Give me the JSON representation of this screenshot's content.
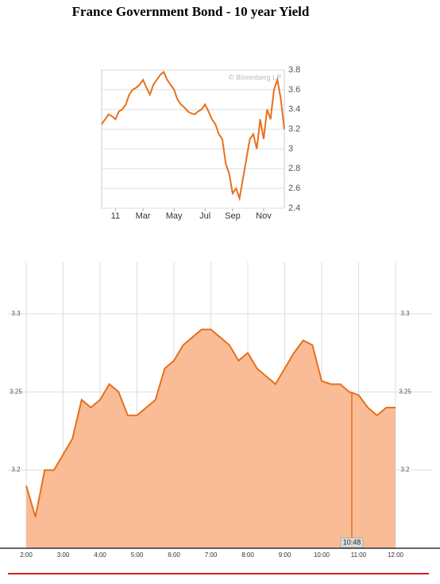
{
  "title": "France Government Bond - 10 year Yield",
  "chart_data": [
    {
      "type": "line",
      "watermark": "© Bloomberg LP",
      "color": "#e8701a",
      "categories": [
        null,
        null,
        null,
        null,
        "11",
        null,
        null,
        null,
        null,
        null,
        null,
        null,
        "Mar",
        null,
        null,
        null,
        null,
        null,
        null,
        null,
        null,
        "May",
        null,
        null,
        null,
        null,
        null,
        null,
        null,
        null,
        "Jul",
        null,
        null,
        null,
        null,
        null,
        null,
        null,
        "Sep",
        null,
        null,
        null,
        null,
        null,
        null,
        null,
        null,
        "Nov",
        null,
        null,
        null,
        null,
        null,
        null
      ],
      "values": [
        3.25,
        3.3,
        3.35,
        3.33,
        3.3,
        3.38,
        3.4,
        3.45,
        3.55,
        3.6,
        3.62,
        3.65,
        3.7,
        3.62,
        3.55,
        3.65,
        3.7,
        3.75,
        3.78,
        3.7,
        3.65,
        3.6,
        3.5,
        3.45,
        3.42,
        3.38,
        3.36,
        3.35,
        3.38,
        3.4,
        3.45,
        3.38,
        3.3,
        3.25,
        3.15,
        3.1,
        2.85,
        2.75,
        2.55,
        2.6,
        2.5,
        2.7,
        2.9,
        3.1,
        3.15,
        3.0,
        3.3,
        3.1,
        3.4,
        3.3,
        3.6,
        3.7,
        3.5,
        3.2
      ],
      "ylim": [
        2.4,
        3.8
      ],
      "yticks": [
        2.4,
        2.6,
        2.8,
        3,
        3.2,
        3.4,
        3.6,
        3.8
      ],
      "grid": true
    },
    {
      "type": "area",
      "color": "#e8701a",
      "fill": "#f9bc96",
      "marker_label": "10:48",
      "categories": [
        "2:00",
        null,
        null,
        null,
        "3:00",
        null,
        null,
        null,
        "4:00",
        null,
        null,
        null,
        "5:00",
        null,
        null,
        null,
        "6:00",
        null,
        null,
        null,
        "7:00",
        null,
        null,
        null,
        "8:00",
        null,
        null,
        null,
        "9:00",
        null,
        null,
        null,
        "10:00",
        null,
        null,
        null,
        "11:00",
        null,
        null,
        null,
        "12:00"
      ],
      "values": [
        3.19,
        3.17,
        3.2,
        3.2,
        3.21,
        3.22,
        3.245,
        3.24,
        3.245,
        3.255,
        3.25,
        3.235,
        3.235,
        3.24,
        3.245,
        3.265,
        3.27,
        3.28,
        3.285,
        3.29,
        3.29,
        3.285,
        3.28,
        3.27,
        3.275,
        3.265,
        3.26,
        3.255,
        3.265,
        3.275,
        3.283,
        3.28,
        3.257,
        3.255,
        3.255,
        3.25,
        3.248,
        3.24,
        3.235,
        3.24,
        3.24
      ],
      "ylim": [
        3.15,
        3.333
      ],
      "yticks": [
        3.2,
        3.25,
        3.3
      ],
      "grid": true
    }
  ]
}
